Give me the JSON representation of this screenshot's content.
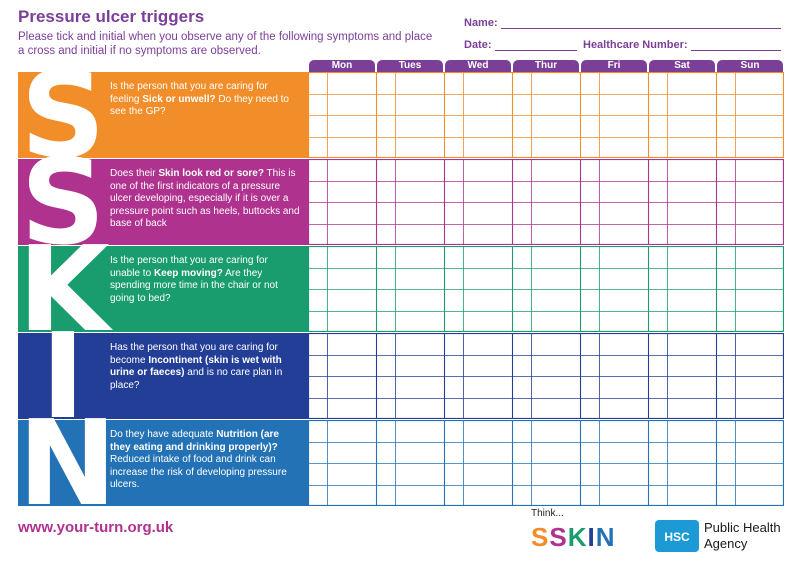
{
  "header": {
    "title": "Pressure ulcer triggers",
    "instructions": "Please tick and initial when you observe any of the following symptoms and place a cross and initial if no symptoms are observed.",
    "name_label": "Name:",
    "date_label": "Date:",
    "healthcare_label": "Healthcare Number:"
  },
  "days": [
    "Mon",
    "Tues",
    "Wed",
    "Thur",
    "Fri",
    "Sat",
    "Sun"
  ],
  "colors": {
    "purple": "#7b3f98",
    "magenta": "#b0328f",
    "s1": "#f28e2a",
    "s2": "#b0328f",
    "k": "#1a9d6e",
    "i": "#233e96",
    "n": "#2472b6"
  },
  "rows": [
    {
      "letter": "S",
      "color": "#f28e2a",
      "parts": [
        {
          "t": "Is the person that you are caring for feeling ",
          "b": false
        },
        {
          "t": "Sick or unwell?",
          "b": true
        },
        {
          "t": " Do they need to see the GP?",
          "b": false
        }
      ]
    },
    {
      "letter": "S",
      "color": "#b0328f",
      "parts": [
        {
          "t": "Does their ",
          "b": false
        },
        {
          "t": "Skin look red or sore?",
          "b": true
        },
        {
          "t": " This is one of the first indicators of a pressure ulcer developing, especially if it is over a pressure point such as heels, buttocks and base of back",
          "b": false
        }
      ]
    },
    {
      "letter": "K",
      "color": "#1a9d6e",
      "parts": [
        {
          "t": "Is the person that you are caring for unable to ",
          "b": false
        },
        {
          "t": "Keep moving?",
          "b": true
        },
        {
          "t": " Are they spending more time in the chair or not going to bed?",
          "b": false
        }
      ]
    },
    {
      "letter": "I",
      "color": "#233e96",
      "parts": [
        {
          "t": "Has the person that you are caring for become ",
          "b": false
        },
        {
          "t": "Incontinent (skin is wet with urine or faeces)",
          "b": true
        },
        {
          "t": " and is no care plan in place?",
          "b": false
        }
      ]
    },
    {
      "letter": "N",
      "color": "#2472b6",
      "parts": [
        {
          "t": "Do they have adequate ",
          "b": false
        },
        {
          "t": "Nutrition (are they eating and drinking properly)?",
          "b": true
        },
        {
          "t": " Reduced intake of food and drink can increase the risk of developing pressure ulcers.",
          "b": false
        }
      ]
    }
  ],
  "footer": {
    "url": "www.your-turn.org.uk",
    "think_small": "Think...",
    "think_letters": [
      {
        "ch": "S",
        "color": "#f28e2a"
      },
      {
        "ch": "S",
        "color": "#b0328f"
      },
      {
        "ch": "K",
        "color": "#1a9d6e"
      },
      {
        "ch": "I",
        "color": "#233e96"
      },
      {
        "ch": "N",
        "color": "#2472b6"
      }
    ],
    "hsc": "HSC",
    "agency_line1": "Public Health",
    "agency_line2": "Agency"
  }
}
